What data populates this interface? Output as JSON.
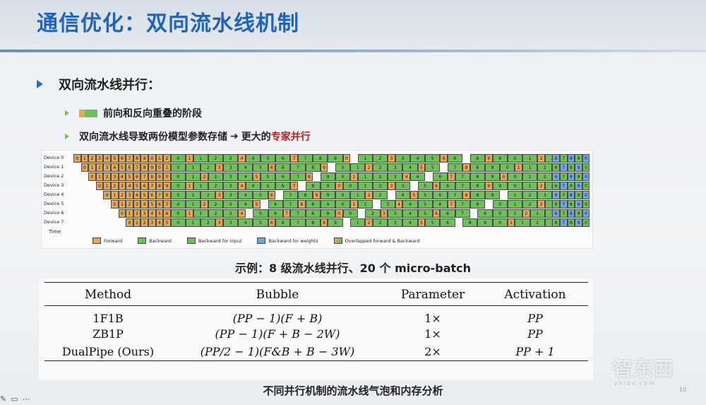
{
  "title": "通信优化：双向流水线机制",
  "main_bullet": "双向流水线并行：",
  "sub_bullets": {
    "overlap_label": "前向和反向重叠的阶段",
    "storage_prefix": "双向流水线导致两份模型参数存储",
    "arrow": "➔",
    "result_prefix": "更大的",
    "result_highlight": "专家并行"
  },
  "pipeline_figure": {
    "devices": [
      "Device 0",
      "Device 1",
      "Device 2",
      "Device 3",
      "Device 4",
      "Device 5",
      "Device 6",
      "Device 7"
    ],
    "time_label": "Time",
    "legend": [
      {
        "label": "Forward",
        "color": "#e3a857"
      },
      {
        "label": "Backward",
        "color": "#6ec05a"
      },
      {
        "label": "Backward for input",
        "color": "#6ec05a"
      },
      {
        "label": "Backward for weights",
        "color": "#6fa8dc"
      },
      {
        "label": "Overlapped forward & Backward",
        "color": "#9acd6b"
      }
    ]
  },
  "caption_example": "示例：8 级流水线并行、20 个 micro-batch",
  "table": {
    "headers": [
      "Method",
      "Bubble",
      "Parameter",
      "Activation"
    ],
    "rows": [
      {
        "method": "1F1B",
        "bubble": "(PP − 1)(F + B)",
        "parameter": "1×",
        "activation": "PP"
      },
      {
        "method": "ZB1P",
        "bubble": "(PP − 1)(F + B − 2W)",
        "parameter": "1×",
        "activation": "PP"
      },
      {
        "method": "DualPipe (Ours)",
        "bubble": "(PP/2 − 1)(F&B + B − 3W)",
        "parameter": "2×",
        "activation": "PP + 1"
      }
    ]
  },
  "caption_table": "不同并行机制的流水线气泡和内存分析",
  "page_number": "10",
  "watermark": "智东西",
  "watermark_sub": "zhidx.com",
  "colors": {
    "title": "#1f64b8",
    "forward": "#e3a857",
    "backward": "#6ec05a",
    "weights": "#6fa8dc",
    "highlight": "#b12020"
  }
}
